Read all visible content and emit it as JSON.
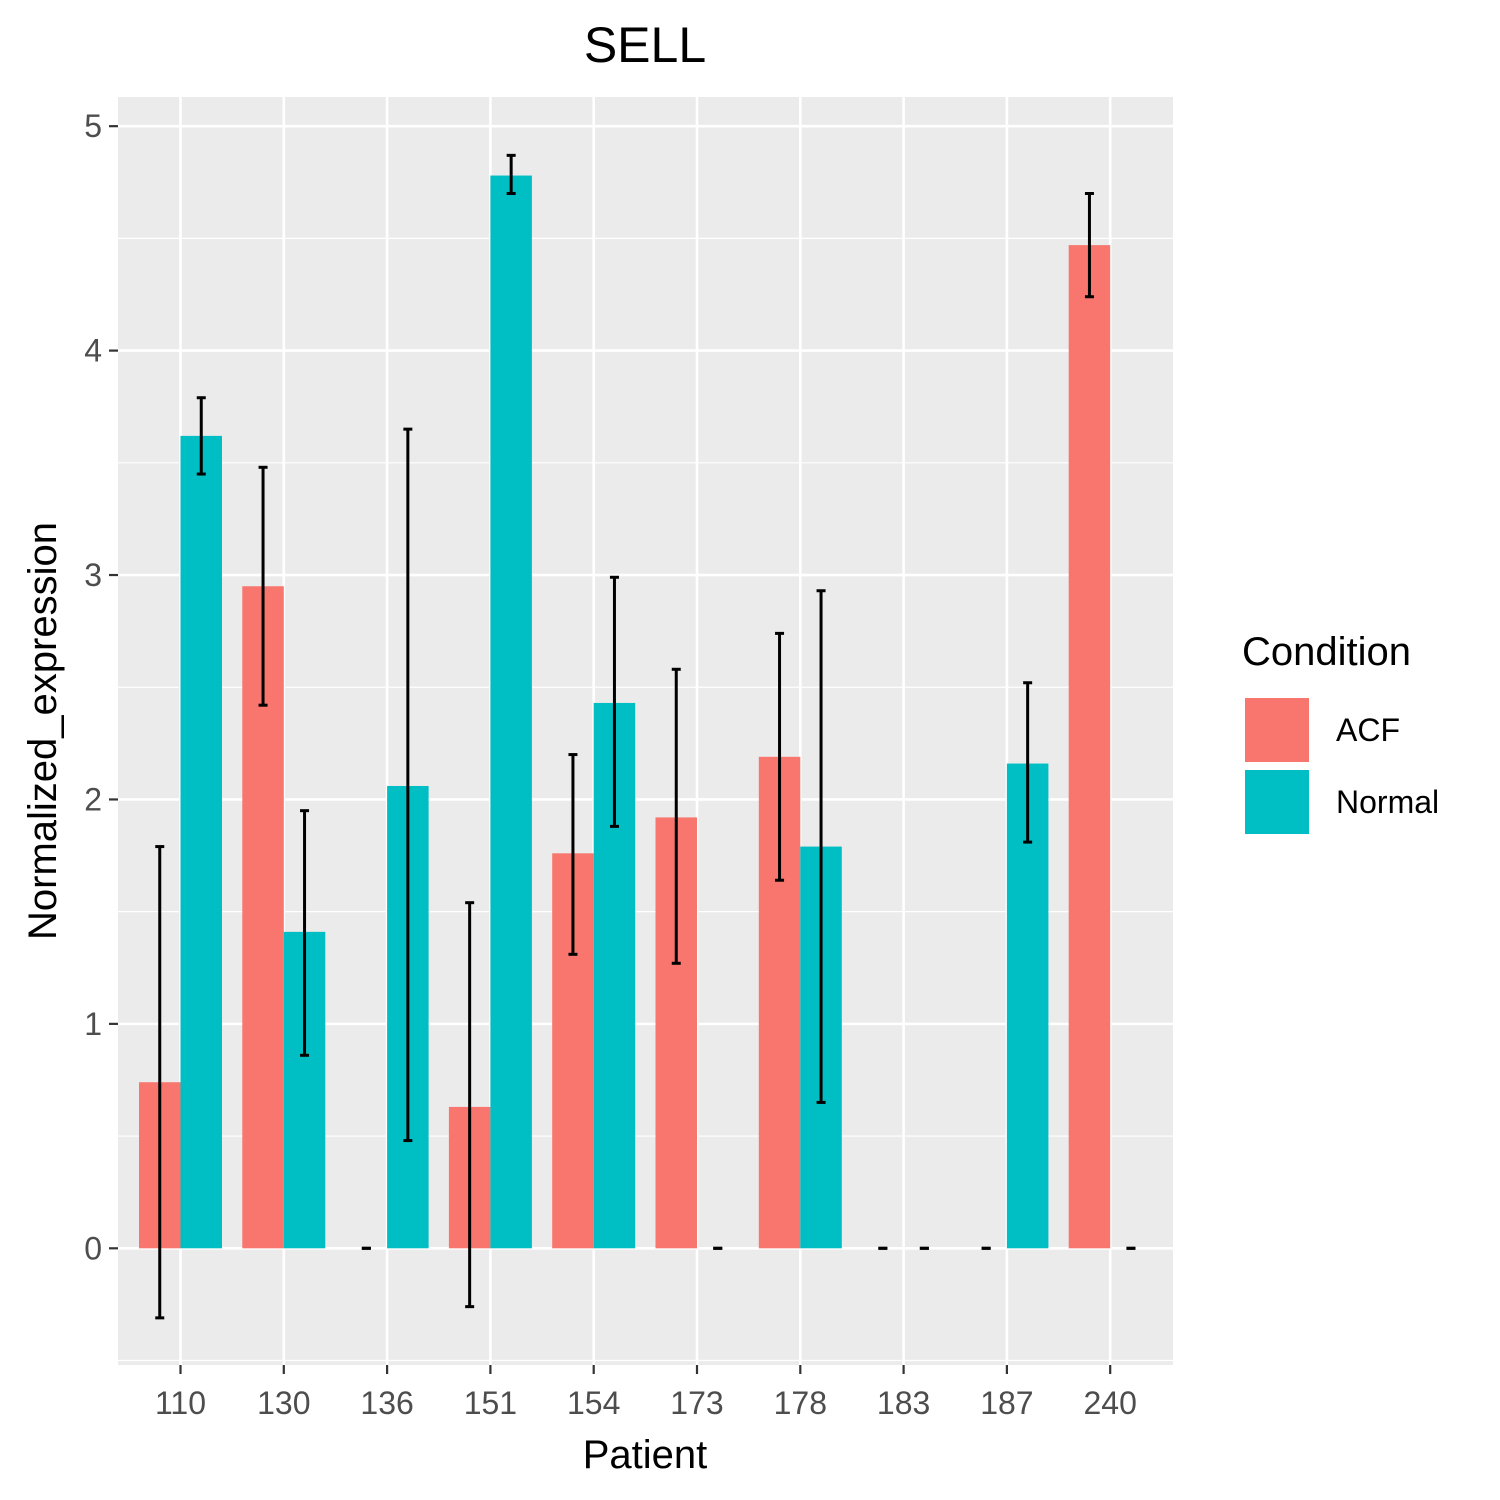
{
  "chart_data": {
    "type": "bar",
    "title": "SELL",
    "xlabel": "Patient",
    "ylabel": "Normalized_expression",
    "categories": [
      "110",
      "130",
      "136",
      "151",
      "154",
      "173",
      "178",
      "183",
      "187",
      "240"
    ],
    "ylim": [
      -0.52,
      5.13
    ],
    "yticks": [
      0,
      1,
      2,
      3,
      4,
      5
    ],
    "grid": true,
    "legend_title": "Condition",
    "legend_position": "right",
    "series": [
      {
        "name": "ACF",
        "color": "#F8766D",
        "values": [
          0.74,
          2.95,
          0,
          0.63,
          1.76,
          1.92,
          2.19,
          0,
          0,
          4.47
        ],
        "err_low": [
          -0.31,
          2.42,
          0,
          -0.26,
          1.31,
          1.27,
          1.64,
          0,
          0,
          4.24
        ],
        "err_high": [
          1.79,
          3.48,
          0,
          1.54,
          2.2,
          2.58,
          2.74,
          0,
          0,
          4.7
        ]
      },
      {
        "name": "Normal",
        "color": "#00BFC4",
        "values": [
          3.62,
          1.41,
          2.06,
          4.78,
          2.43,
          0,
          1.79,
          0,
          2.16,
          0
        ],
        "err_low": [
          3.45,
          0.86,
          0.48,
          4.7,
          1.88,
          0,
          0.65,
          0,
          1.81,
          0
        ],
        "err_high": [
          3.79,
          1.95,
          3.65,
          4.87,
          2.99,
          0,
          2.93,
          0,
          2.52,
          0
        ]
      }
    ]
  }
}
